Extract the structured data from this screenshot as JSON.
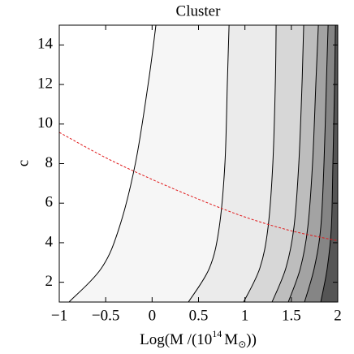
{
  "chart_data": {
    "type": "contour",
    "title": "Cluster",
    "xlabel": [
      "Log(M /(10",
      "14",
      "M",
      "⊙",
      "))"
    ],
    "ylabel": "c",
    "xlim": [
      -1,
      2
    ],
    "ylim": [
      1,
      15
    ],
    "xticks": [
      {
        "value": -1,
        "label": "−1"
      },
      {
        "value": -0.5,
        "label": "−0.5"
      },
      0,
      0.5,
      1,
      1.5,
      2
    ],
    "yticks": [
      2,
      4,
      6,
      8,
      10,
      12,
      14
    ],
    "contour_y": [
      1,
      2.72,
      4.78,
      8.06,
      12.17,
      15
    ],
    "contours": [
      {
        "x": [
          -0.895,
          -0.545,
          -0.353,
          -0.178,
          -0.038,
          0.041
        ]
      },
      {
        "x": [
          0.391,
          0.618,
          0.723,
          0.785,
          0.811,
          0.829
        ]
      },
      {
        "x": [
          0.986,
          1.161,
          1.249,
          1.301,
          1.328,
          1.336
        ]
      },
      {
        "x": [
          1.292,
          1.441,
          1.528,
          1.581,
          1.616,
          1.633
        ]
      },
      {
        "x": [
          1.467,
          1.598,
          1.677,
          1.729,
          1.765,
          1.791
        ]
      },
      {
        "x": [
          1.642,
          1.747,
          1.817,
          1.852,
          1.878,
          1.896
        ]
      },
      {
        "x": [
          1.817,
          1.887,
          1.931,
          1.948,
          1.966,
          1.975
        ]
      }
    ],
    "fill_colors": [
      "#ffffff",
      "#f6f6f6",
      "#ebebeb",
      "#d7d7d7",
      "#bdbdbd",
      "#a3a3a3",
      "#858585",
      "#555555"
    ],
    "line": {
      "x": [
        -1,
        -0.5,
        0,
        0.5,
        1,
        1.5,
        2
      ],
      "values": [
        9.58,
        8.3,
        7.2,
        6.2,
        5.3,
        4.6,
        4.1
      ],
      "color": "#e0191b",
      "dashed": true
    }
  }
}
